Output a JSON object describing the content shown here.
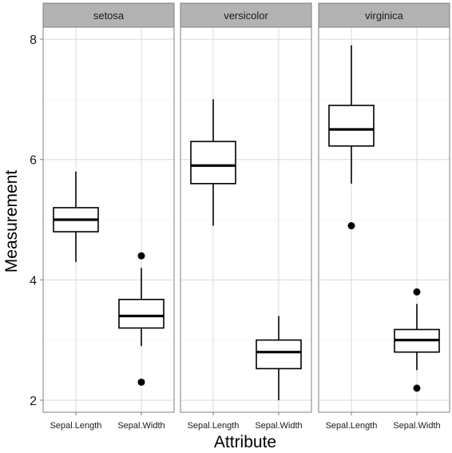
{
  "chart_data": {
    "type": "boxplot",
    "xlabel": "Attribute",
    "ylabel": "Measurement",
    "ylim": [
      1.8,
      8.2
    ],
    "y_ticks": [
      2,
      4,
      6,
      8
    ],
    "categories": [
      "Sepal.Length",
      "Sepal.Width"
    ],
    "grid": true,
    "facets": [
      {
        "name": "setosa",
        "boxes": [
          {
            "category": "Sepal.Length",
            "min": 4.3,
            "q1": 4.8,
            "median": 5.0,
            "q3": 5.2,
            "max": 5.8,
            "outliers": []
          },
          {
            "category": "Sepal.Width",
            "min": 2.9,
            "q1": 3.2,
            "median": 3.4,
            "q3": 3.675,
            "max": 4.2,
            "outliers": [
              4.4,
              2.3
            ]
          }
        ]
      },
      {
        "name": "versicolor",
        "boxes": [
          {
            "category": "Sepal.Length",
            "min": 4.9,
            "q1": 5.6,
            "median": 5.9,
            "q3": 6.3,
            "max": 7.0,
            "outliers": []
          },
          {
            "category": "Sepal.Width",
            "min": 2.0,
            "q1": 2.525,
            "median": 2.8,
            "q3": 3.0,
            "max": 3.4,
            "outliers": []
          }
        ]
      },
      {
        "name": "virginica",
        "boxes": [
          {
            "category": "Sepal.Length",
            "min": 5.6,
            "q1": 6.225,
            "median": 6.5,
            "q3": 6.9,
            "max": 7.9,
            "outliers": [
              4.9
            ]
          },
          {
            "category": "Sepal.Width",
            "min": 2.5,
            "q1": 2.8,
            "median": 3.0,
            "q3": 3.175,
            "max": 3.6,
            "outliers": [
              3.8,
              2.2
            ]
          }
        ]
      }
    ]
  }
}
